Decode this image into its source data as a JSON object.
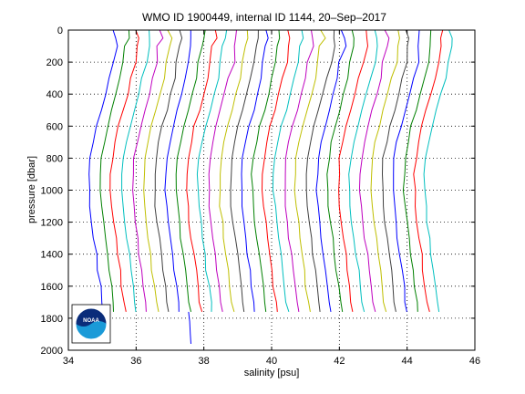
{
  "chart_data": {
    "type": "line",
    "title": "WMO ID 1900449, internal ID 1144, 20–Sep–2017",
    "xlabel": "salinity [psu]",
    "ylabel": "pressure [dbar]",
    "xlim": [
      34,
      46
    ],
    "ylim": [
      0,
      2000
    ],
    "y_reversed": true,
    "grid": true,
    "x_ticks": [
      "34",
      "36",
      "38",
      "40",
      "42",
      "44",
      "46"
    ],
    "y_ticks": [
      "0",
      "200",
      "400",
      "600",
      "800",
      "1000",
      "1200",
      "1400",
      "1600",
      "1800",
      "2000"
    ],
    "profile_pressures": [
      0,
      50,
      100,
      200,
      300,
      400,
      500,
      600,
      700,
      800,
      900,
      1000,
      1100,
      1200,
      1300,
      1400,
      1500,
      1600,
      1700,
      1760
    ],
    "profile_shape": [
      0.0,
      0.05,
      0.0,
      -0.08,
      -0.18,
      -0.3,
      -0.42,
      -0.55,
      -0.66,
      -0.74,
      -0.78,
      -0.78,
      -0.75,
      -0.7,
      -0.64,
      -0.58,
      -0.52,
      -0.46,
      -0.4,
      -0.36
    ],
    "profile_offsets": [
      35.4,
      35.72,
      36.04,
      36.36,
      36.68,
      37.0,
      37.32,
      37.64,
      37.96,
      38.28,
      38.6,
      38.92,
      39.24,
      39.56,
      39.88,
      40.2,
      40.52,
      40.84,
      41.16,
      41.48,
      41.8,
      42.12,
      42.44,
      42.76,
      43.08,
      43.4,
      43.72,
      44.04,
      44.36,
      44.68,
      45.0,
      45.3
    ],
    "series_colors": [
      "#0000ff",
      "#008000",
      "#ff0000",
      "#00bfbf",
      "#bf00bf",
      "#bfbf00",
      "#404040"
    ],
    "extra_series": {
      "x": [
        37.55,
        37.58,
        37.6,
        37.62
      ],
      "y": [
        1760,
        1820,
        1900,
        1960
      ],
      "color": "#0000ff"
    },
    "logo": "noaa-logo"
  }
}
